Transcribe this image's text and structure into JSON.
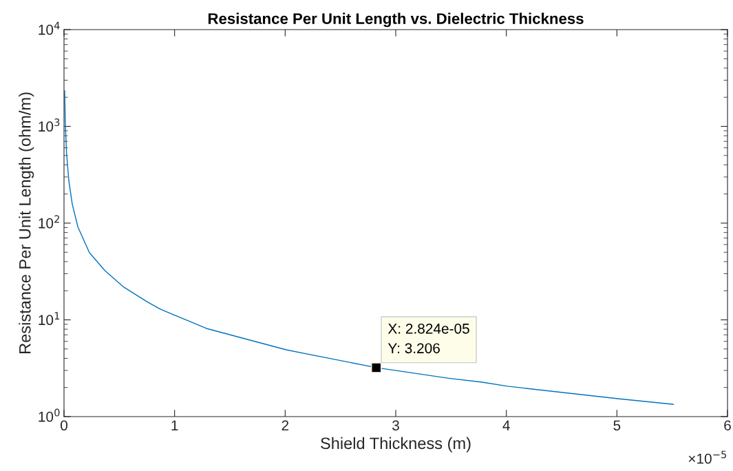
{
  "chart_data": {
    "type": "line",
    "title": "Resistance Per Unit Length vs. Dielectric Thickness",
    "xlabel": "Shield Thickness (m)",
    "ylabel": "Resistance Per Unit Length (ohm/m)",
    "log": "y",
    "grid": false,
    "marker": "none",
    "line_style": "solid",
    "xlim": [
      0,
      6
    ],
    "xticks": [
      0,
      1,
      2,
      3,
      4,
      5,
      6
    ],
    "ylim": [
      1,
      10000
    ],
    "yticks": [
      {
        "value": 1,
        "label": "10$^{0}$"
      },
      {
        "value": 10,
        "label": "10$^{1}$"
      },
      {
        "value": 100,
        "label": "10$^{2}$"
      },
      {
        "value": 1000,
        "label": "10$^{3}$"
      },
      {
        "value": 10000,
        "label": "10$^{4}$"
      }
    ],
    "series": [
      {
        "color": "#0072bd",
        "x": [
          0.006,
          0.012,
          0.023,
          0.044,
          0.075,
          0.126,
          0.23,
          0.37,
          0.54,
          0.75,
          0.87,
          1.288,
          2.01,
          2.824,
          3.47,
          3.78,
          4.01,
          5.01,
          5.51
        ],
        "values": [
          2330,
          1060,
          523,
          272,
          156,
          91,
          49.4,
          32.3,
          21.8,
          15.4,
          12.9,
          8.15,
          4.9,
          3.206,
          2.5,
          2.27,
          2.06,
          1.53,
          1.34
        ]
      }
    ],
    "annotations": [
      {
        "text": "X: 2.824e-05\nY: 3.206",
        "x": 2.824,
        "y": 3.206
      },
      "×10$^{−5}$"
    ]
  }
}
